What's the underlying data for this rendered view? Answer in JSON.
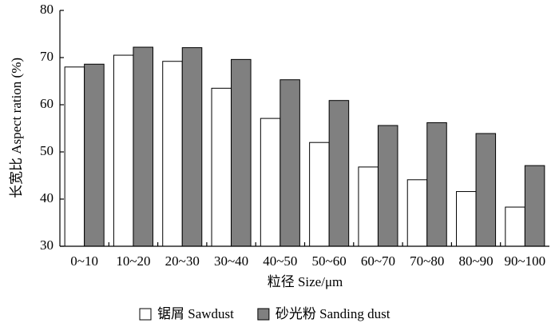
{
  "chart_data": {
    "type": "bar",
    "y_label": "长宽比 Aspect ration (%)",
    "x_label": "粒径 Size/μm",
    "categories": [
      "0~10",
      "10~20",
      "20~30",
      "30~40",
      "40~50",
      "50~60",
      "60~70",
      "70~80",
      "80~90",
      "90~100"
    ],
    "series": [
      {
        "name": "锯屑 Sawdust",
        "color": "#ffffff",
        "values": [
          68.0,
          70.5,
          69.2,
          63.5,
          57.1,
          52.0,
          46.8,
          44.1,
          41.6,
          38.3
        ]
      },
      {
        "name": "砂光粉 Sanding dust",
        "color": "#808080",
        "values": [
          68.6,
          72.2,
          72.1,
          69.6,
          65.3,
          60.9,
          55.6,
          56.2,
          53.9,
          47.1
        ]
      }
    ],
    "ylim": [
      30,
      80
    ],
    "yticks": [
      30,
      40,
      50,
      60,
      70,
      80
    ],
    "grid": false
  }
}
